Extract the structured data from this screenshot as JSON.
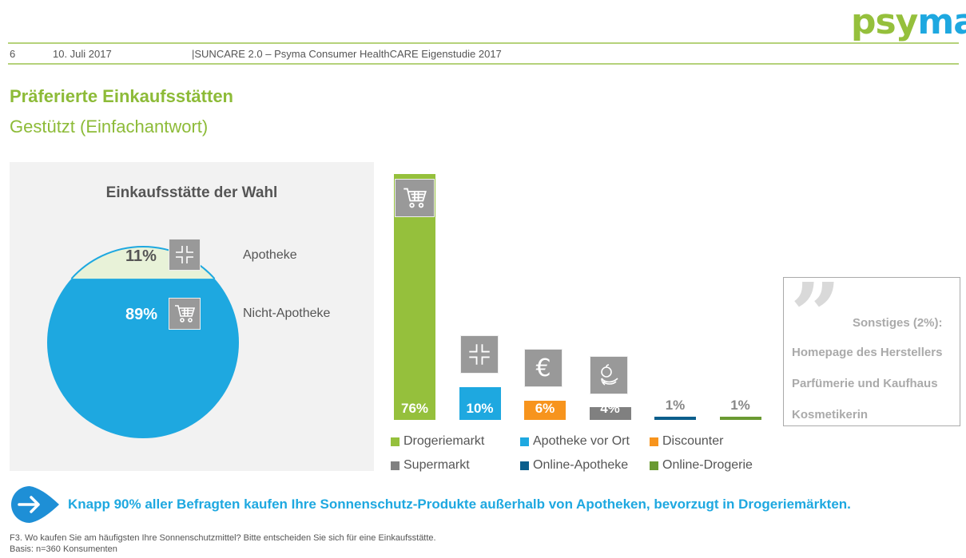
{
  "header": {
    "logo_part1": "psy",
    "logo_part2": "ma",
    "page_number": "6",
    "date": "10. Juli 2017",
    "study": "|SUNCARE 2.0 – Psyma Consumer HealthCARE Eigenstudie 2017"
  },
  "title": "Präferierte Einkaufsstätten",
  "subtitle": "Gestützt (Einfachantwort)",
  "colors": {
    "green": "#95c03c",
    "blue": "#1ea8e0",
    "orange": "#f7941d",
    "gray": "#808080",
    "darkblue": "#0b5e8c",
    "darkgreen": "#6a9a32",
    "pie_light": "#e8f2d8",
    "icon_gray": "#999999"
  },
  "chart_data": [
    {
      "type": "pie",
      "title": "Einkaufsstätte der Wahl",
      "categories": [
        "Apotheke",
        "Nicht-Apotheke"
      ],
      "values": [
        11,
        89
      ],
      "value_labels": [
        "11%",
        "89%"
      ],
      "icons": [
        "pharmacy-cross-icon",
        "shopping-cart-icon"
      ]
    },
    {
      "type": "bar",
      "title": "",
      "categories": [
        "Drogeriemarkt",
        "Apotheke vor Ort",
        "Discounter",
        "Supermarkt",
        "Online-Apotheke",
        "Online-Drogerie"
      ],
      "values": [
        76,
        10,
        6,
        4,
        1,
        1
      ],
      "value_labels": [
        "76%",
        "10%",
        "6%",
        "4%",
        "1%",
        "1%"
      ],
      "icons": [
        "shopping-cart-icon",
        "pharmacy-cross-icon",
        "euro-icon",
        "fruit-icon",
        "",
        ""
      ],
      "legend_position": "bottom",
      "ylim": [
        0,
        80
      ],
      "grid": false
    }
  ],
  "other": {
    "heading": "Sonstiges (2%):",
    "items": [
      "Homepage des Herstellers",
      "Parfümerie und Kaufhaus",
      "Kosmetikerin"
    ]
  },
  "conclusion": "Knapp 90% aller Befragten kaufen Ihre Sonnenschutz-Produkte außerhalb von Apotheken, bevorzugt in Drogeriemärkten.",
  "footnote": {
    "question": "F3. Wo kaufen Sie am häufigsten Ihre Sonnenschutzmittel? Bitte entscheiden Sie sich für eine Einkaufsstätte.",
    "basis": "Basis: n=360 Konsumenten"
  }
}
